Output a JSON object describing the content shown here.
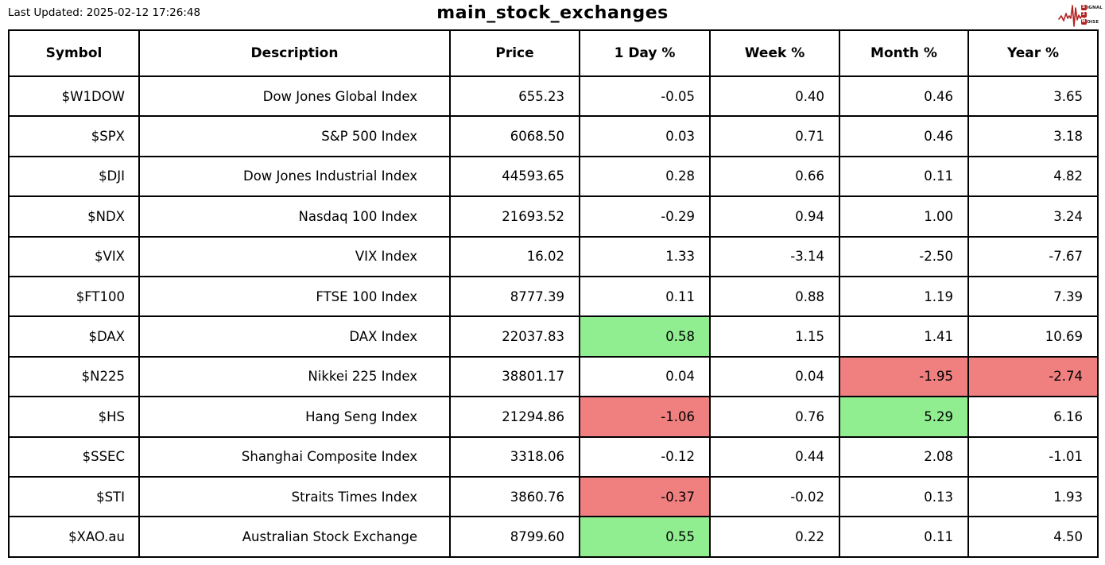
{
  "header": {
    "last_updated": "Last Updated: 2025-02-12 17:26:48",
    "logo": {
      "name": "Signal 2 Noise",
      "line1_badge": "S",
      "line1_rest": "IGNAL",
      "line2_badge": "2",
      "line3_badge": "N",
      "line3_rest": "OISE",
      "waveform_icon": "ecg-waveform-icon"
    }
  },
  "colors": {
    "positive_bg": "#90EE90",
    "negative_bg": "#F08080",
    "logo_red": "#B22222",
    "border": "#000000"
  },
  "chart_data": {
    "type": "table",
    "title": "main_stock_exchanges",
    "columns": [
      {
        "key": "symbol",
        "label": "Symbol"
      },
      {
        "key": "description",
        "label": "Description"
      },
      {
        "key": "price",
        "label": "Price"
      },
      {
        "key": "day",
        "label": "1 Day %"
      },
      {
        "key": "week",
        "label": "Week %"
      },
      {
        "key": "month",
        "label": "Month %"
      },
      {
        "key": "year",
        "label": "Year %"
      }
    ],
    "rows": [
      {
        "symbol": "$W1DOW",
        "description": "Dow Jones Global Index",
        "price": "655.23",
        "day": "-0.05",
        "week": "0.40",
        "month": "0.46",
        "year": "3.65",
        "highlights": {}
      },
      {
        "symbol": "$SPX",
        "description": "S&P 500 Index",
        "price": "6068.50",
        "day": "0.03",
        "week": "0.71",
        "month": "0.46",
        "year": "3.18",
        "highlights": {}
      },
      {
        "symbol": "$DJI",
        "description": "Dow Jones Industrial Index",
        "price": "44593.65",
        "day": "0.28",
        "week": "0.66",
        "month": "0.11",
        "year": "4.82",
        "highlights": {}
      },
      {
        "symbol": "$NDX",
        "description": "Nasdaq 100 Index",
        "price": "21693.52",
        "day": "-0.29",
        "week": "0.94",
        "month": "1.00",
        "year": "3.24",
        "highlights": {}
      },
      {
        "symbol": "$VIX",
        "description": "VIX Index",
        "price": "16.02",
        "day": "1.33",
        "week": "-3.14",
        "month": "-2.50",
        "year": "-7.67",
        "highlights": {}
      },
      {
        "symbol": "$FT100",
        "description": "FTSE 100 Index",
        "price": "8777.39",
        "day": "0.11",
        "week": "0.88",
        "month": "1.19",
        "year": "7.39",
        "highlights": {}
      },
      {
        "symbol": "$DAX",
        "description": "DAX Index",
        "price": "22037.83",
        "day": "0.58",
        "week": "1.15",
        "month": "1.41",
        "year": "10.69",
        "highlights": {
          "day": "positive"
        }
      },
      {
        "symbol": "$N225",
        "description": "Nikkei 225 Index",
        "price": "38801.17",
        "day": "0.04",
        "week": "0.04",
        "month": "-1.95",
        "year": "-2.74",
        "highlights": {
          "month": "negative",
          "year": "negative"
        }
      },
      {
        "symbol": "$HS",
        "description": "Hang Seng Index",
        "price": "21294.86",
        "day": "-1.06",
        "week": "0.76",
        "month": "5.29",
        "year": "6.16",
        "highlights": {
          "day": "negative",
          "month": "positive"
        }
      },
      {
        "symbol": "$SSEC",
        "description": "Shanghai Composite Index",
        "price": "3318.06",
        "day": "-0.12",
        "week": "0.44",
        "month": "2.08",
        "year": "-1.01",
        "highlights": {}
      },
      {
        "symbol": "$STI",
        "description": "Straits Times Index",
        "price": "3860.76",
        "day": "-0.37",
        "week": "-0.02",
        "month": "0.13",
        "year": "1.93",
        "highlights": {
          "day": "negative"
        }
      },
      {
        "symbol": "$XAO.au",
        "description": "Australian Stock Exchange",
        "price": "8799.60",
        "day": "0.55",
        "week": "0.22",
        "month": "0.11",
        "year": "4.50",
        "highlights": {
          "day": "positive"
        }
      }
    ]
  }
}
